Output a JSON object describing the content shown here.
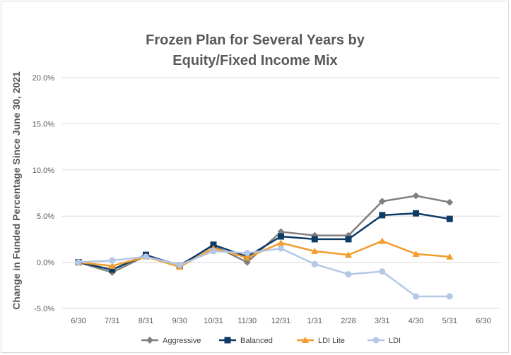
{
  "chart_data": {
    "type": "line",
    "title_line1": "Frozen Plan for Several Years by",
    "title_line2": "Equity/Fixed Income Mix",
    "ylabel": "Change in Funded Percentage Since June 30, 2021",
    "xlabel": "",
    "categories": [
      "6/30",
      "7/31",
      "8/31",
      "9/30",
      "10/31",
      "11/30",
      "12/31",
      "1/31",
      "2/28",
      "3/31",
      "4/30",
      "5/31",
      "6/30"
    ],
    "ylim": [
      -5.0,
      20.0
    ],
    "yticks": [
      -5.0,
      0.0,
      5.0,
      10.0,
      15.0,
      20.0
    ],
    "ytick_labels": [
      "-5.0%",
      "0.0%",
      "5.0%",
      "10.0%",
      "15.0%",
      "20.0%"
    ],
    "grid": true,
    "legend_position": "bottom",
    "series": [
      {
        "name": "Aggressive",
        "color": "#7f7f7f",
        "marker": "diamond",
        "values": [
          0.0,
          -1.1,
          0.7,
          -0.3,
          1.8,
          0.0,
          3.3,
          2.9,
          2.9,
          6.6,
          7.2,
          6.5,
          null
        ]
      },
      {
        "name": "Balanced",
        "color": "#0d3b66",
        "marker": "square",
        "values": [
          0.0,
          -0.8,
          0.8,
          -0.4,
          1.9,
          0.6,
          2.8,
          2.5,
          2.5,
          5.1,
          5.3,
          4.7,
          null
        ]
      },
      {
        "name": "LDI Lite",
        "color": "#f39c2a",
        "marker": "triangle",
        "values": [
          0.0,
          -0.4,
          0.6,
          -0.5,
          1.5,
          0.5,
          2.1,
          1.2,
          0.8,
          2.3,
          0.9,
          0.6,
          null
        ]
      },
      {
        "name": "LDI",
        "color": "#b4c7e7",
        "marker": "circle",
        "values": [
          0.0,
          0.2,
          0.6,
          -0.3,
          1.2,
          1.0,
          1.5,
          -0.2,
          -1.3,
          -1.0,
          -3.7,
          -3.7,
          null
        ]
      }
    ]
  }
}
